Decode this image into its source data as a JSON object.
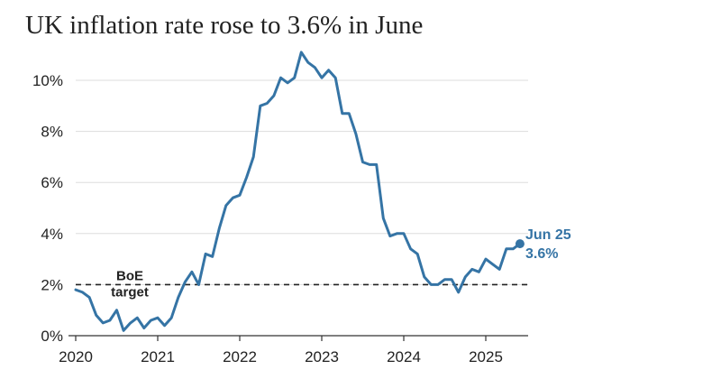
{
  "title": "UK inflation rate rose to 3.6% in June",
  "colors": {
    "line": "#3574a5",
    "grid": "#dddddd",
    "text": "#222222"
  },
  "chart_data": {
    "type": "line",
    "title": "UK inflation rate rose to 3.6% in June",
    "xlabel": "",
    "ylabel": "",
    "x_ticks": [
      "2020",
      "2021",
      "2022",
      "2023",
      "2024",
      "2025"
    ],
    "y_ticks": [
      "0%",
      "2%",
      "4%",
      "6%",
      "8%",
      "10%"
    ],
    "ylim": [
      0,
      11
    ],
    "grid": "horizontal",
    "series": [
      {
        "x": [
          "2020-01",
          "2020-02",
          "2020-03",
          "2020-04",
          "2020-05",
          "2020-06",
          "2020-07",
          "2020-08",
          "2020-09",
          "2020-10",
          "2020-11",
          "2020-12",
          "2021-01",
          "2021-02",
          "2021-03",
          "2021-04",
          "2021-05",
          "2021-06",
          "2021-07",
          "2021-08",
          "2021-09",
          "2021-10",
          "2021-11",
          "2021-12",
          "2022-01",
          "2022-02",
          "2022-03",
          "2022-04",
          "2022-05",
          "2022-06",
          "2022-07",
          "2022-08",
          "2022-09",
          "2022-10",
          "2022-11",
          "2022-12",
          "2023-01",
          "2023-02",
          "2023-03",
          "2023-04",
          "2023-05",
          "2023-06",
          "2023-07",
          "2023-08",
          "2023-09",
          "2023-10",
          "2023-11",
          "2023-12",
          "2024-01",
          "2024-02",
          "2024-03",
          "2024-04",
          "2024-05",
          "2024-06",
          "2024-07",
          "2024-08",
          "2024-09",
          "2024-10",
          "2024-11",
          "2024-12",
          "2025-01",
          "2025-02",
          "2025-03",
          "2025-04",
          "2025-05",
          "2025-06"
        ],
        "values": [
          1.8,
          1.7,
          1.5,
          0.8,
          0.5,
          0.6,
          1.0,
          0.2,
          0.5,
          0.7,
          0.3,
          0.6,
          0.7,
          0.4,
          0.7,
          1.5,
          2.1,
          2.5,
          2.0,
          3.2,
          3.1,
          4.2,
          5.1,
          5.4,
          5.5,
          6.2,
          7.0,
          9.0,
          9.1,
          9.4,
          10.1,
          9.9,
          10.1,
          11.1,
          10.7,
          10.5,
          10.1,
          10.4,
          10.1,
          8.7,
          8.7,
          7.9,
          6.8,
          6.7,
          6.7,
          4.6,
          3.9,
          4.0,
          4.0,
          3.4,
          3.2,
          2.3,
          2.0,
          2.0,
          2.2,
          2.2,
          1.7,
          2.3,
          2.6,
          2.5,
          3.0,
          2.8,
          2.6,
          3.4,
          3.4,
          3.6
        ]
      }
    ],
    "reference_line": {
      "value": 2,
      "label_line1": "BoE",
      "label_line2": "target"
    },
    "end_label": {
      "line1": "Jun 25",
      "line2": "3.6%"
    }
  }
}
